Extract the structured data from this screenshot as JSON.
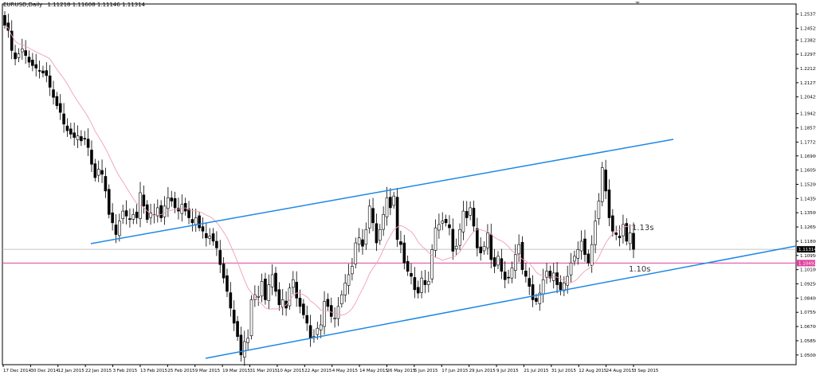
{
  "header": {
    "symbol": "EURUSD,Daily",
    "ohlc": "1.11218 1.11608 1.11146 1.11314"
  },
  "colors": {
    "candle": "#000000",
    "moving_average": "#f0a0b0",
    "trendline": "#1e88e5",
    "horizontal_line": "#e040a0",
    "bid_line": "#b0b0b0",
    "price_tag_bg": "#000000",
    "pink_tag_bg": "#e040a0"
  },
  "chart_data": {
    "type": "candlestick",
    "title": "EURUSD,Daily",
    "ylim": [
      1.0442,
      1.2598
    ],
    "y_ticks": [
      "1.25375",
      "1.24525",
      "1.23825",
      "1.22975",
      "1.22125",
      "1.21275",
      "1.20425",
      "1.19425",
      "1.18575",
      "1.17725",
      "1.16900",
      "1.16050",
      "1.15200",
      "1.14350",
      "1.13500",
      "1.12650",
      "1.11800",
      "1.10950",
      "1.10100",
      "1.09250",
      "1.08400",
      "1.07550",
      "1.06700",
      "1.05850",
      "1.05000",
      "1.04175"
    ],
    "x_ticks": [
      "17 Dec 2014",
      "30 Dec 2014",
      "12 Jan 2015",
      "22 Jan 2015",
      "3 Feb 2015",
      "13 Feb 2015",
      "25 Feb 2015",
      "9 Mar 2015",
      "19 Mar 2015",
      "31 Mar 2015",
      "10 Apr 2015",
      "22 Apr 2015",
      "4 May 2015",
      "14 May 2015",
      "26 May 2015",
      "5 Jun 2015",
      "17 Jun 2015",
      "29 Jun 2015",
      "9 Jul 2015",
      "21 Jul 2015",
      "31 Jul 2015",
      "12 Aug 2015",
      "24 Aug 2015",
      "3 Sep 2015"
    ],
    "current_price": "1.11314",
    "horizontal_level": "1.10492",
    "annotations": [
      "1.13s",
      "1.10s"
    ],
    "closes": [
      1.247,
      1.244,
      1.232,
      1.227,
      1.23,
      1.233,
      1.229,
      1.225,
      1.223,
      1.2215,
      1.22,
      1.2185,
      1.217,
      1.21,
      1.204,
      1.199,
      1.195,
      1.188,
      1.184,
      1.182,
      1.18,
      1.181,
      1.178,
      1.179,
      1.174,
      1.164,
      1.156,
      1.161,
      1.158,
      1.148,
      1.134,
      1.129,
      1.122,
      1.13,
      1.136,
      1.133,
      1.131,
      1.134,
      1.132,
      1.147,
      1.139,
      1.131,
      1.135,
      1.134,
      1.138,
      1.132,
      1.139,
      1.144,
      1.142,
      1.138,
      1.136,
      1.14,
      1.136,
      1.132,
      1.129,
      1.132,
      1.126,
      1.124,
      1.12,
      1.121,
      1.118,
      1.114,
      1.104,
      1.096,
      1.088,
      1.078,
      1.069,
      1.061,
      1.05,
      1.058,
      1.06,
      1.083,
      1.086,
      1.085,
      1.094,
      1.083,
      1.092,
      1.098,
      1.088,
      1.08,
      1.083,
      1.078,
      1.09,
      1.095,
      1.084,
      1.079,
      1.074,
      1.069,
      1.06,
      1.061,
      1.066,
      1.068,
      1.082,
      1.079,
      1.073,
      1.072,
      1.079,
      1.086,
      1.093,
      1.098,
      1.103,
      1.117,
      1.12,
      1.115,
      1.125,
      1.139,
      1.129,
      1.117,
      1.125,
      1.134,
      1.144,
      1.138,
      1.145,
      1.119,
      1.116,
      1.105,
      1.1,
      1.097,
      1.089,
      1.087,
      1.096,
      1.092,
      1.094,
      1.113,
      1.126,
      1.128,
      1.13,
      1.129,
      1.126,
      1.112,
      1.115,
      1.125,
      1.136,
      1.132,
      1.138,
      1.127,
      1.114,
      1.111,
      1.115,
      1.123,
      1.107,
      1.103,
      1.109,
      1.1,
      1.095,
      1.096,
      1.102,
      1.11,
      1.116,
      1.101,
      1.097,
      1.091,
      1.083,
      1.082,
      1.087,
      1.095,
      1.1,
      1.096,
      1.099,
      1.092,
      1.089,
      1.093,
      1.097,
      1.105,
      1.109,
      1.113,
      1.118,
      1.11,
      1.105,
      1.116,
      1.13,
      1.142,
      1.162,
      1.148,
      1.132,
      1.124,
      1.122,
      1.12,
      1.128,
      1.118,
      1.123,
      1.1131
    ]
  }
}
